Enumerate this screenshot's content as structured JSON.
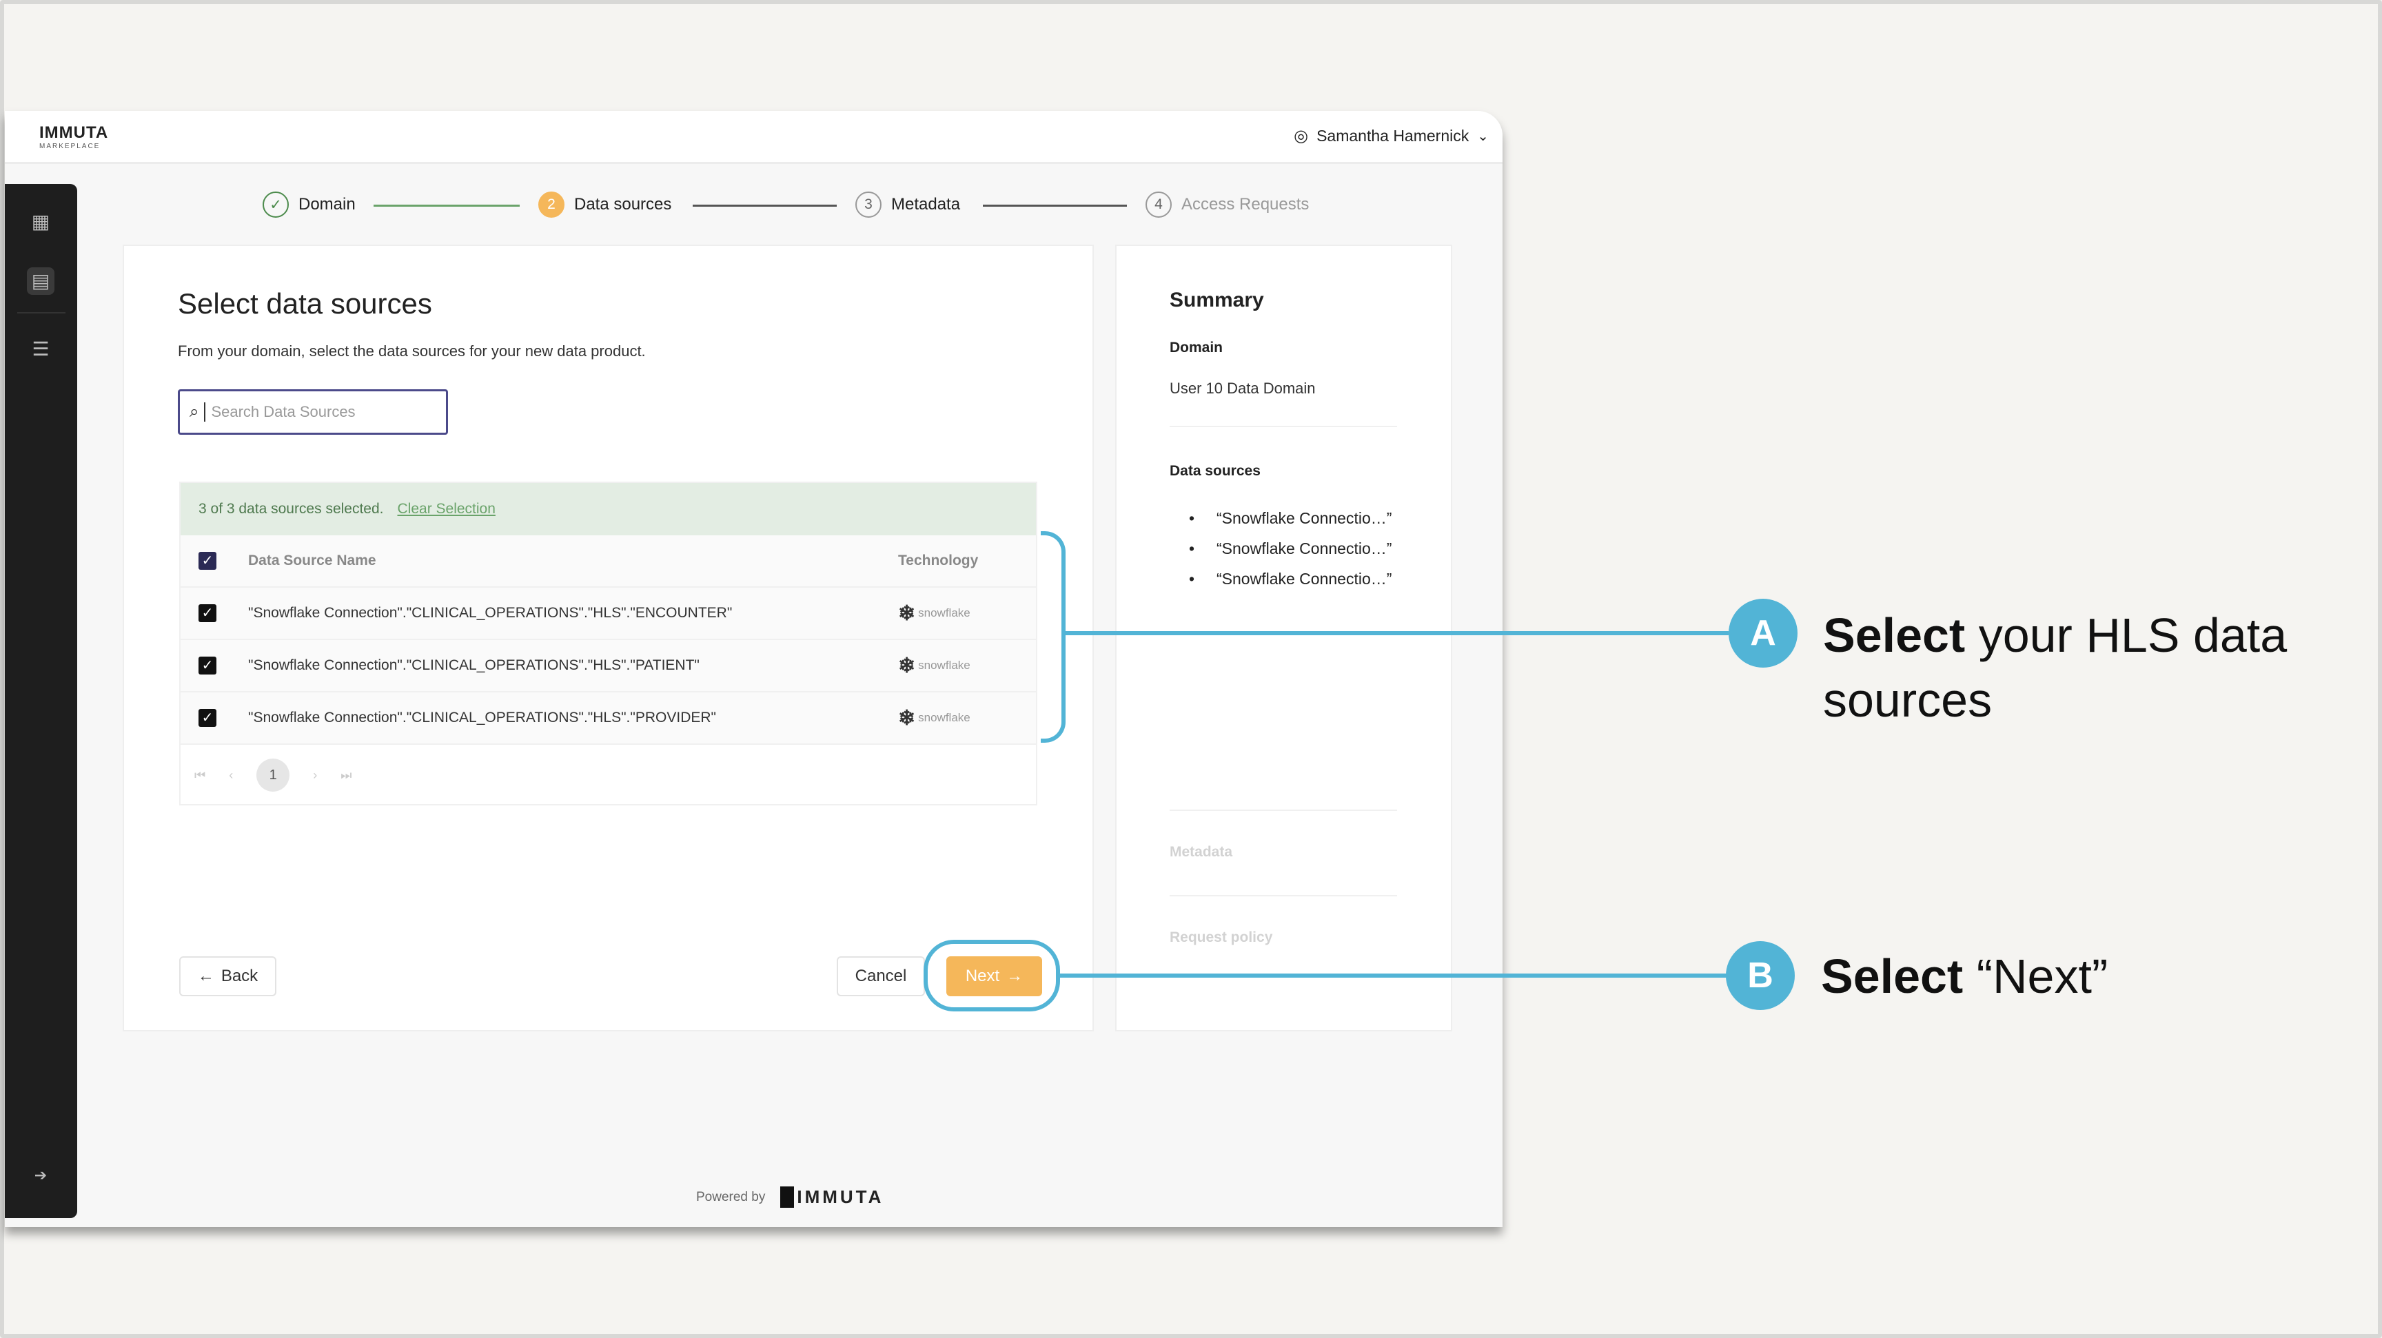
{
  "header": {
    "logo": "IMMUTA",
    "logo_sub": "MARKEPLACE",
    "user": "Samantha Hamernick"
  },
  "stepper": [
    {
      "label": "Domain",
      "state": "complete",
      "marker": "✓"
    },
    {
      "label": "Data sources",
      "state": "active",
      "marker": "2"
    },
    {
      "label": "Metadata",
      "state": "upcoming",
      "marker": "3"
    },
    {
      "label": "Access Requests",
      "state": "disabled",
      "marker": "4"
    }
  ],
  "main": {
    "title": "Select data sources",
    "subtitle": "From your domain, select the data sources for your new data product.",
    "search_placeholder": "Search Data Sources",
    "selection_text": "3 of 3 data sources selected.",
    "clear_selection": "Clear Selection",
    "columns": {
      "name": "Data Source Name",
      "technology": "Technology"
    },
    "rows": [
      {
        "name": "\"Snowflake Connection\".\"CLINICAL_OPERATIONS\".\"HLS\".\"ENCOUNTER\"",
        "technology": "snowflake",
        "checked": true
      },
      {
        "name": "\"Snowflake Connection\".\"CLINICAL_OPERATIONS\".\"HLS\".\"PATIENT\"",
        "technology": "snowflake",
        "checked": true
      },
      {
        "name": "\"Snowflake Connection\".\"CLINICAL_OPERATIONS\".\"HLS\".\"PROVIDER\"",
        "technology": "snowflake",
        "checked": true
      }
    ],
    "page": "1",
    "back": "Back",
    "cancel": "Cancel",
    "next": "Next"
  },
  "summary": {
    "title": "Summary",
    "domain_label": "Domain",
    "domain_value": "User 10 Data Domain",
    "sources_label": "Data sources",
    "sources": [
      "“Snowflake Connectio…”",
      "“Snowflake Connectio…”",
      "“Snowflake Connectio…”"
    ],
    "metadata_label": "Metadata",
    "policy_label": "Request policy"
  },
  "footer": {
    "powered_by": "Powered by",
    "logo": "IMMUTA"
  },
  "callouts": [
    {
      "badge": "A",
      "bold": "Select",
      "text": " your HLS data sources"
    },
    {
      "badge": "B",
      "bold": "Select",
      "text": " “Next”"
    }
  ],
  "colors": {
    "accent": "#52b4d6",
    "primary": "#f5b75a",
    "success": "#4c8b4c",
    "banner": "#e3ede3"
  }
}
